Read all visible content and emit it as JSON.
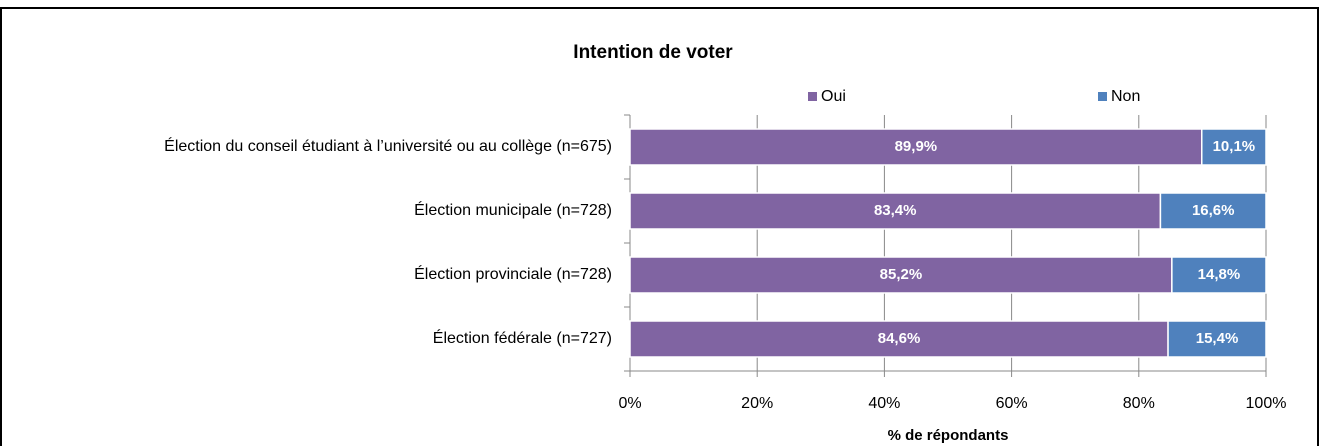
{
  "chart_data": {
    "type": "stacked_barh",
    "title": "Intention de voter",
    "categories": [
      "Élection du conseil étudiant à l’université ou au collège (n=675)",
      "Élection municipale  (n=728)",
      "Élection provinciale (n=728)",
      "Élection fédérale (n=727)"
    ],
    "series": [
      {
        "name": "Oui",
        "color": "#8064a2",
        "values": [
          89.9,
          83.4,
          85.2,
          84.6
        ],
        "value_labels": [
          "89,9%",
          "83,4%",
          "85,2%",
          "84,6%"
        ]
      },
      {
        "name": "Non",
        "color": "#4f81bd",
        "values": [
          10.1,
          16.6,
          14.8,
          15.4
        ],
        "value_labels": [
          "10,1%",
          "16,6%",
          "14,8%",
          "15,4%"
        ]
      }
    ],
    "xlabel": "% de répondants",
    "xlim": [
      0,
      100
    ],
    "xticks": [
      {
        "value": 0,
        "label": "0%"
      },
      {
        "value": 20,
        "label": "20%"
      },
      {
        "value": 40,
        "label": "40%"
      },
      {
        "value": 60,
        "label": "60%"
      },
      {
        "value": 80,
        "label": "80%"
      },
      {
        "value": 100,
        "label": "100%"
      }
    ],
    "grid": true,
    "legend": "top"
  }
}
